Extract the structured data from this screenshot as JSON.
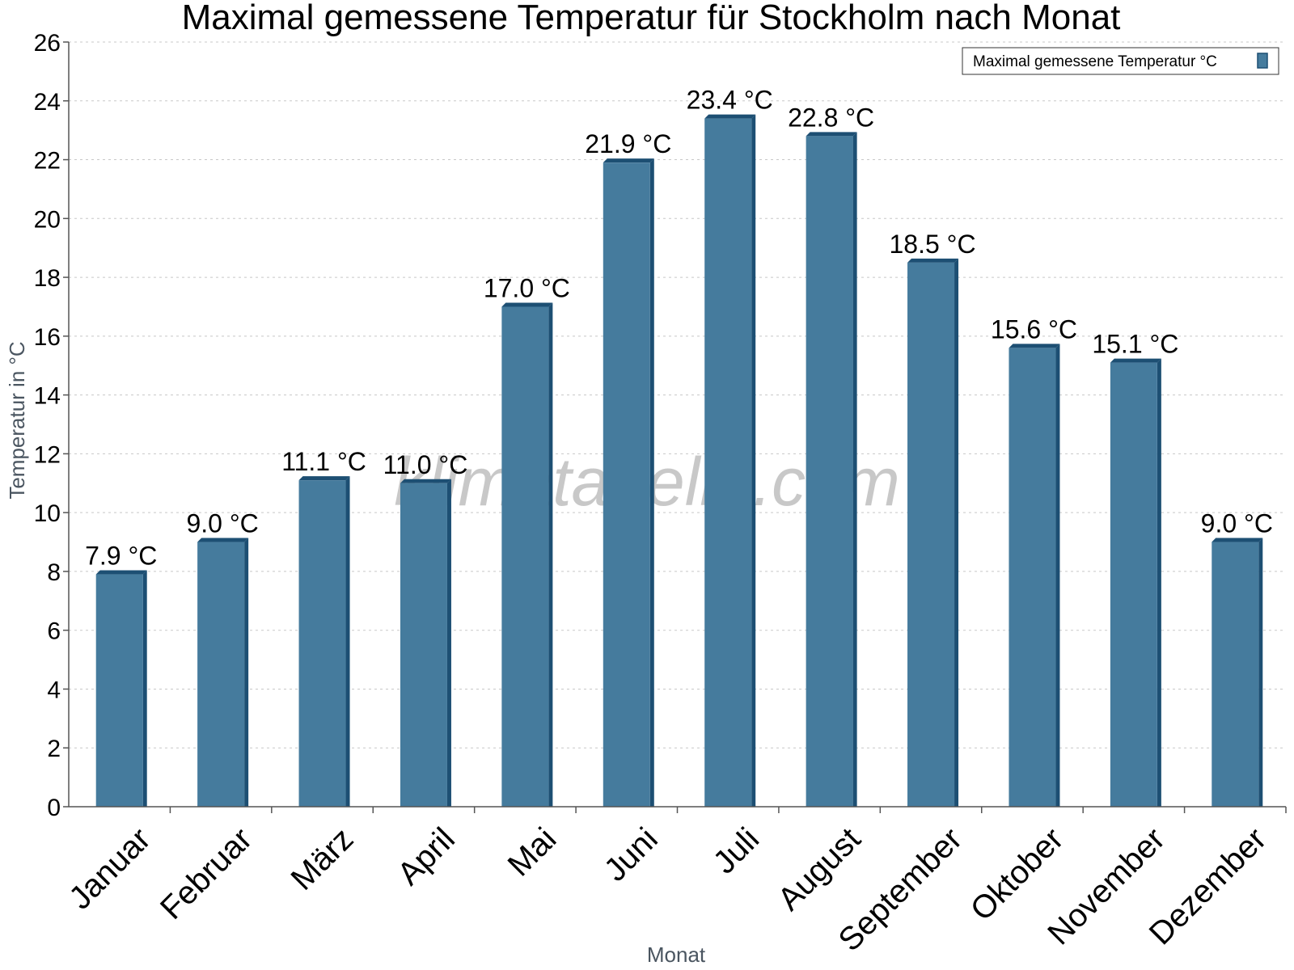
{
  "chart_data": {
    "type": "bar",
    "title": "Maximal gemessene Temperatur für Stockholm nach Monat",
    "xlabel": "Monat",
    "ylabel": "Temperatur in °C",
    "ylim": [
      0,
      26
    ],
    "ytick_step": 2,
    "grid": true,
    "legend_position": "top-right",
    "watermark": "klimatabelle.com",
    "categories": [
      "Januar",
      "Februar",
      "März",
      "April",
      "Mai",
      "Juni",
      "Juli",
      "August",
      "September",
      "Oktober",
      "November",
      "Dezember"
    ],
    "series": [
      {
        "name": "Maximal gemessene Temperatur °C",
        "color": "#457b9d",
        "side_color": "#1d4f73",
        "values": [
          7.9,
          9.0,
          11.1,
          11.0,
          17.0,
          21.9,
          23.4,
          22.8,
          18.5,
          15.6,
          15.1,
          9.0
        ],
        "value_labels": [
          "7.9 °C",
          "9.0 °C",
          "11.1 °C",
          "11.0 °C",
          "17.0 °C",
          "21.9 °C",
          "23.4 °C",
          "22.8 °C",
          "18.5 °C",
          "15.6 °C",
          "15.1 °C",
          "9.0 °C"
        ]
      }
    ]
  }
}
